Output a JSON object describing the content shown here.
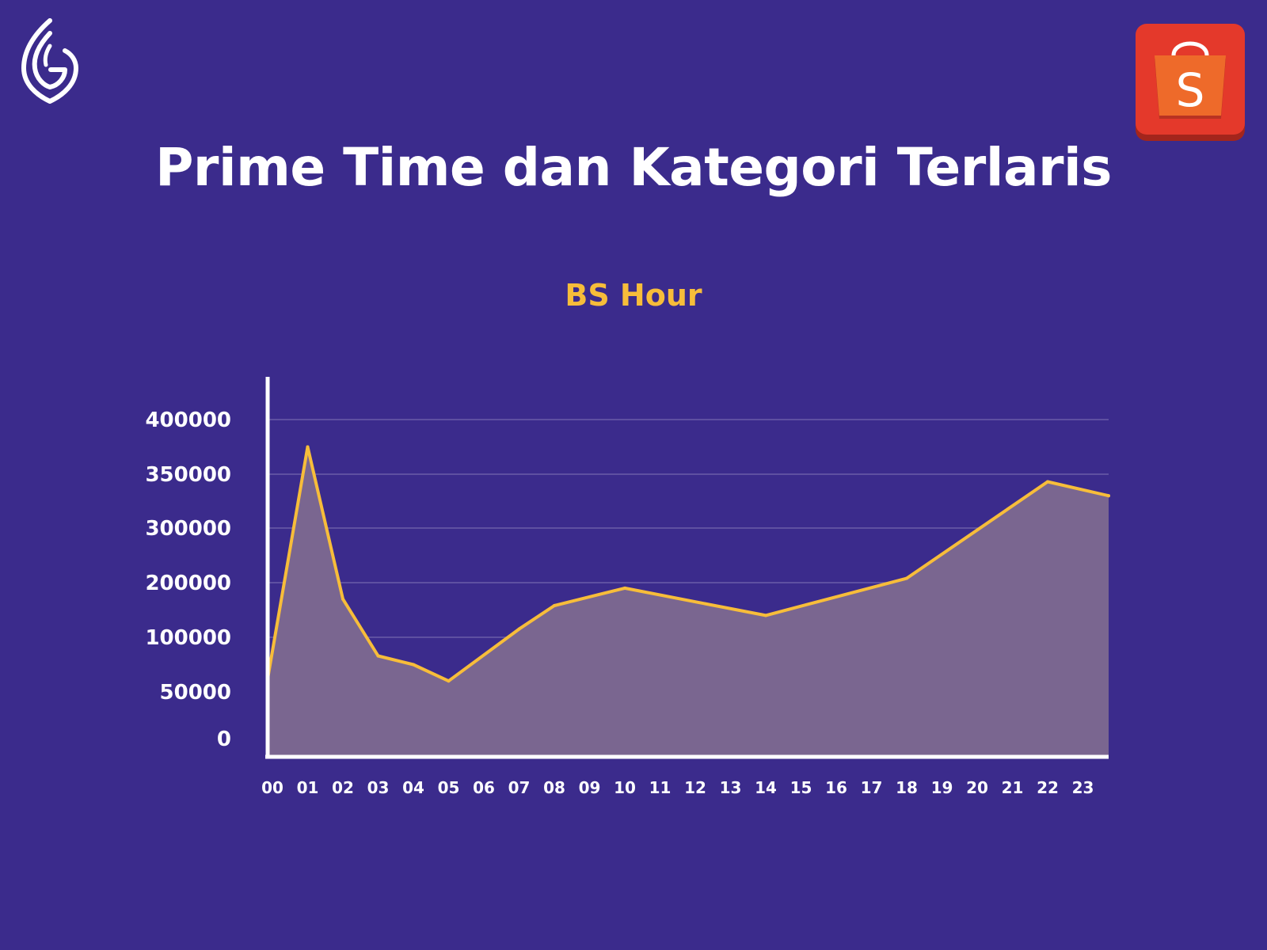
{
  "title": "Prime Time dan Kategori Terlaris",
  "brand_logo": {
    "icon": "leaf-g-logo-icon"
  },
  "shop_logo": {
    "icon": "shopping-bag-icon",
    "letter": "S",
    "colors": {
      "bag": "#ee4d2d",
      "bag_shadow": "#b83222",
      "tile": "#e4392b",
      "tile_shadow": "#a3251c"
    }
  },
  "colors": {
    "background": "#3b2b8c",
    "line": "#f7bd3a",
    "area": "#7a6690",
    "axis": "#ffffff",
    "grid": "#6b5ca8",
    "text": "#ffffff",
    "subtitle": "#f7bd3a"
  },
  "chart_data": {
    "type": "area",
    "title": "BS Hour",
    "xlabel": "",
    "ylabel": "",
    "categories": [
      "00",
      "01",
      "02",
      "03",
      "04",
      "05",
      "06",
      "07",
      "08",
      "09",
      "10",
      "11",
      "12",
      "13",
      "14",
      "15",
      "16",
      "17",
      "18",
      "19",
      "20",
      "21",
      "22",
      "23"
    ],
    "y_ticks": [
      "0",
      "50000",
      "100000",
      "200000",
      "300000",
      "350000",
      "400000"
    ],
    "y_tick_values": [
      0,
      50000,
      100000,
      200000,
      300000,
      350000,
      400000
    ],
    "points": [
      {
        "x": "00",
        "y": 62000
      },
      {
        "x": "01",
        "y": 375000
      },
      {
        "x": "02",
        "y": 170000
      },
      {
        "x": "03",
        "y": 83000
      },
      {
        "x": "04",
        "y": 75000
      },
      {
        "x": "05",
        "y": 60000
      },
      {
        "x": "07",
        "y": 115000
      },
      {
        "x": "08",
        "y": 158000
      },
      {
        "x": "10",
        "y": 190000
      },
      {
        "x": "14",
        "y": 140000
      },
      {
        "x": "18",
        "y": 208000
      },
      {
        "x": "22",
        "y": 343000
      },
      {
        "x": "23",
        "y": 330000
      }
    ],
    "grid": true,
    "legend": "none"
  }
}
